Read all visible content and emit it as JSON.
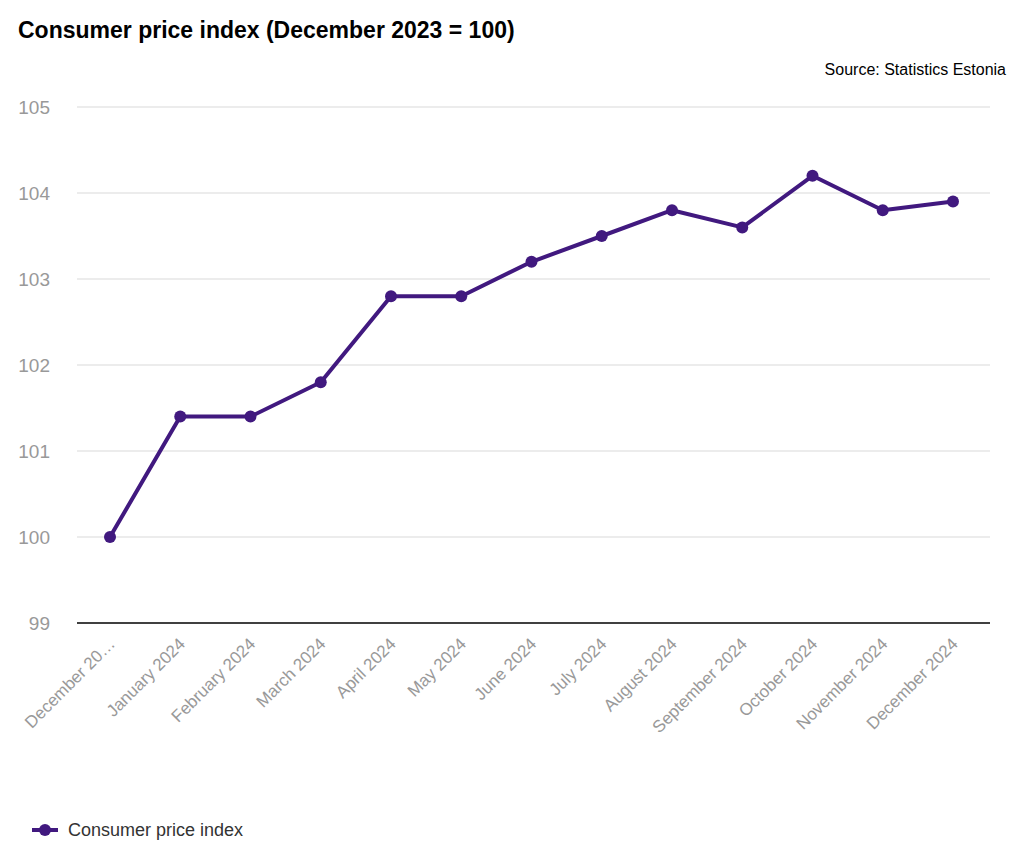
{
  "chart_data": {
    "type": "line",
    "title": "Consumer price index (December 2023 = 100)",
    "subtitle": "Source: Statistics Estonia",
    "categories": [
      "December 20…",
      "January 2024",
      "February 2024",
      "March 2024",
      "April 2024",
      "May 2024",
      "June 2024",
      "July 2024",
      "August 2024",
      "September 2024",
      "October 2024",
      "November 2024",
      "December 2024"
    ],
    "series": [
      {
        "name": "Consumer price index",
        "color": "#41197f",
        "marker": "circle",
        "line_style": "solid",
        "values": [
          100,
          101.4,
          101.4,
          101.8,
          102.8,
          102.8,
          103.2,
          103.5,
          103.8,
          103.6,
          104.2,
          103.8,
          103.9
        ]
      }
    ],
    "ylim": [
      99,
      105
    ],
    "yticks": [
      99,
      100,
      101,
      102,
      103,
      104,
      105
    ],
    "grid": true,
    "legend": "bottom"
  }
}
